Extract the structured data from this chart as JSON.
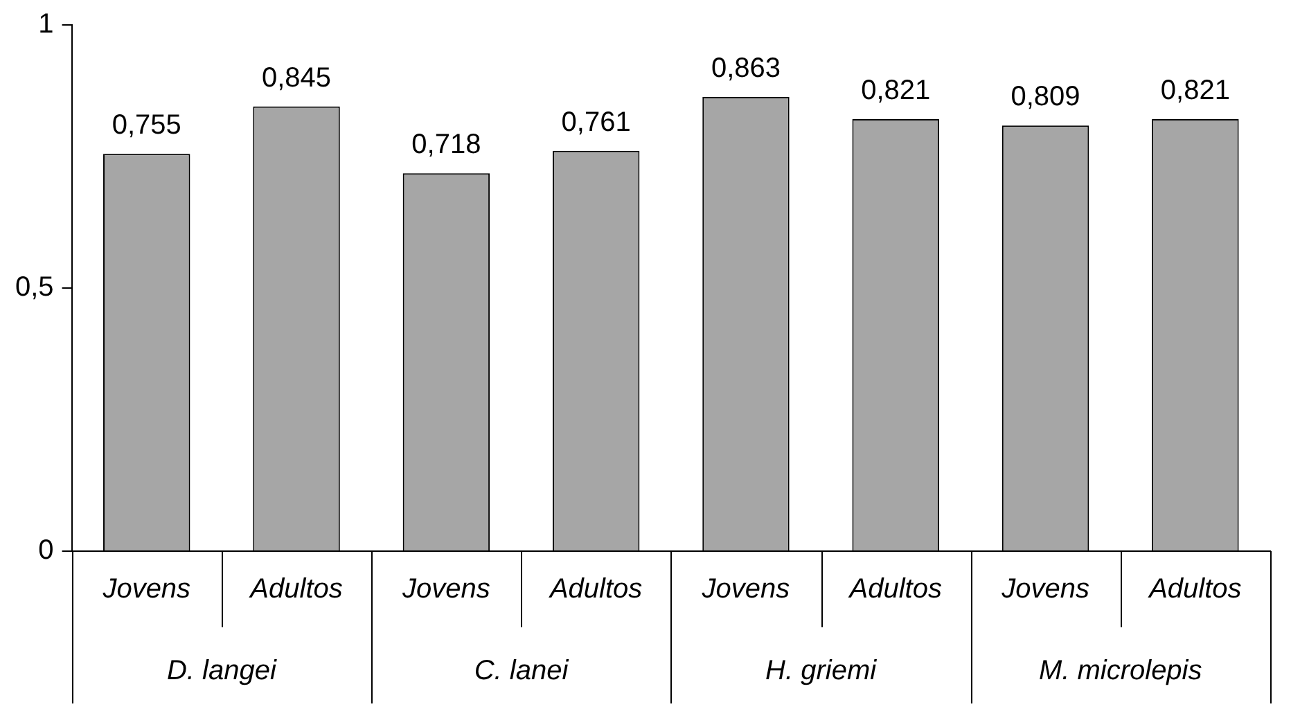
{
  "chart_data": {
    "type": "bar",
    "categories": [
      "Jovens",
      "Adultos",
      "Jovens",
      "Adultos",
      "Jovens",
      "Adultos",
      "Jovens",
      "Adultos"
    ],
    "values": [
      0.755,
      0.845,
      0.718,
      0.761,
      0.863,
      0.821,
      0.809,
      0.821
    ],
    "value_labels": [
      "0,755",
      "0,845",
      "0,718",
      "0,761",
      "0,863",
      "0,821",
      "0,809",
      "0,821"
    ],
    "color": "#a6a6a6",
    "ylim": [
      0,
      1
    ],
    "yticks": [
      0,
      {
        "value": 0.5,
        "label": "0,5"
      },
      1
    ],
    "grid": false,
    "legend": false,
    "annotations": [
      "D. langei",
      "C. lanei",
      "H. griemi",
      "M. microlepis"
    ]
  }
}
